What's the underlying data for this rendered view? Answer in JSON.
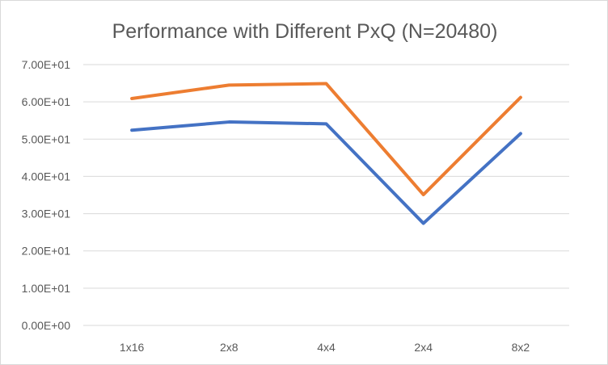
{
  "chart_data": {
    "type": "line",
    "title": "Performance with Different PxQ (N=20480)",
    "xlabel": "",
    "ylabel": "",
    "categories": [
      "1x16",
      "2x8",
      "4x4",
      "2x4",
      "8x2"
    ],
    "ylim": [
      0,
      70
    ],
    "yticks": [
      0,
      10,
      20,
      30,
      40,
      50,
      60,
      70
    ],
    "ytick_labels": [
      "0.00E+00",
      "1.00E+01",
      "2.00E+01",
      "3.00E+01",
      "4.00E+01",
      "5.00E+01",
      "6.00E+01",
      "7.00E+01"
    ],
    "grid": true,
    "legend": "none",
    "series": [
      {
        "color": "#4472C4",
        "values": [
          52.4,
          54.6,
          54.1,
          27.4,
          51.5
        ]
      },
      {
        "color": "#ED7D31",
        "values": [
          60.9,
          64.5,
          64.9,
          35.1,
          61.2
        ]
      }
    ]
  }
}
